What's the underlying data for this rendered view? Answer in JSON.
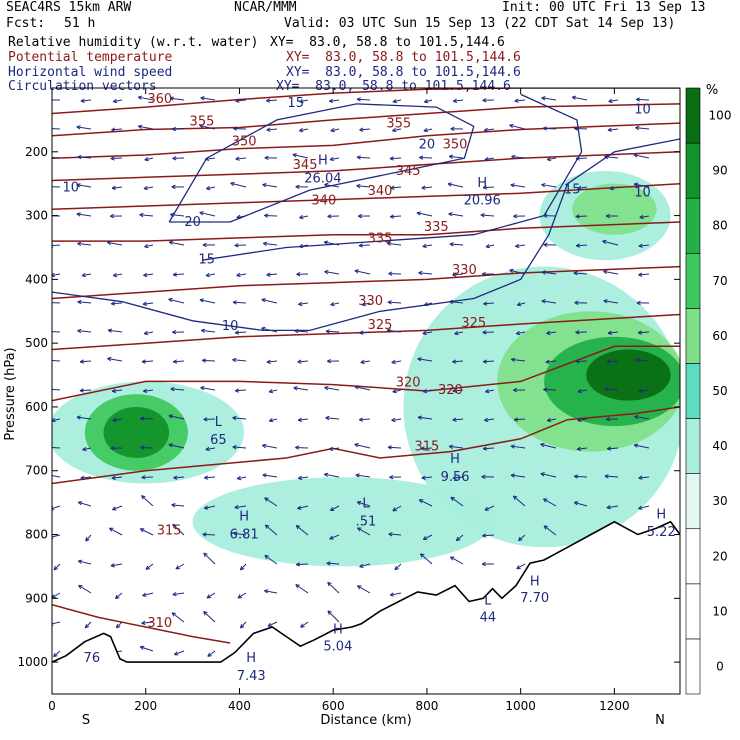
{
  "header": {
    "model": "SEAC4RS 15km ARW",
    "org": "NCAR/MMM",
    "init": "Init: 00 UTC Fri 13 Sep 13",
    "fcst_label": "Fcst:",
    "fcst_value": "51 h",
    "valid": "Valid: 03 UTC Sun 15 Sep 13 (22 CDT Sat 14 Sep 13)",
    "fields": [
      {
        "name": "Relative humidity (w.r.t. water)",
        "xy": "XY=  83.0, 58.8 to 101.5,144.6",
        "color": "#000000"
      },
      {
        "name": "Potential temperature",
        "xy": "XY=  83.0, 58.8 to 101.5,144.6",
        "color": "#8b1a1a"
      },
      {
        "name": "Horizontal wind speed",
        "xy": "XY=  83.0, 58.8 to 101.5,144.6",
        "color": "#1e2a80"
      },
      {
        "name": "Circulation vectors",
        "xy": "XY=  83.0, 58.8 to 101.5,144.6",
        "color": "#1e2a80"
      }
    ]
  },
  "colors": {
    "theta": "#8b1a1a",
    "wind": "#1e2a80",
    "terrain": "#000000",
    "rh_30": "#e0f8f0",
    "rh_40": "#a8eedc",
    "rh_50": "#5cdcc0",
    "rh_60": "#80e08a",
    "rh_70": "#40c860",
    "rh_80": "#22b048",
    "rh_90": "#12922a",
    "rh_100": "#0a6e14"
  },
  "chart_data": {
    "type": "heatmap",
    "title": "SEAC4RS 15km ARW",
    "xlabel": "Distance (km)",
    "ylabel": "Pressure (hPa)",
    "xlim": [
      0,
      1340
    ],
    "ylim": [
      1050,
      100
    ],
    "x_ticks": [
      0,
      200,
      400,
      600,
      800,
      1000,
      1200
    ],
    "y_ticks": [
      200,
      300,
      400,
      500,
      600,
      700,
      800,
      900,
      1000
    ],
    "x_endpoints": [
      "S",
      "N"
    ],
    "colorbar": {
      "unit": "%",
      "levels": [
        0,
        10,
        20,
        30,
        40,
        50,
        60,
        70,
        80,
        90,
        100
      ],
      "colors": [
        "#ffffff",
        "#ffffff",
        "#ffffff",
        "#e0f8f0",
        "#a8eedc",
        "#5cdcc0",
        "#80e08a",
        "#40c860",
        "#22b048",
        "#12922a",
        "#0a6e14"
      ]
    },
    "rh_regions": [
      {
        "level": 40,
        "cx": 200,
        "cy": 640,
        "rx": 210,
        "ry": 80
      },
      {
        "level": 70,
        "cx": 180,
        "cy": 640,
        "rx": 110,
        "ry": 60
      },
      {
        "level": 90,
        "cx": 180,
        "cy": 640,
        "rx": 70,
        "ry": 40
      },
      {
        "level": 40,
        "cx": 620,
        "cy": 780,
        "rx": 320,
        "ry": 70
      },
      {
        "level": 40,
        "cx": 1050,
        "cy": 600,
        "rx": 300,
        "ry": 220
      },
      {
        "level": 60,
        "cx": 1150,
        "cy": 560,
        "rx": 200,
        "ry": 110
      },
      {
        "level": 80,
        "cx": 1200,
        "cy": 560,
        "rx": 150,
        "ry": 70
      },
      {
        "level": 100,
        "cx": 1230,
        "cy": 550,
        "rx": 90,
        "ry": 40
      },
      {
        "level": 40,
        "cx": 1180,
        "cy": 300,
        "rx": 140,
        "ry": 70
      },
      {
        "level": 60,
        "cx": 1200,
        "cy": 290,
        "rx": 90,
        "ry": 40
      }
    ],
    "theta_contours": [
      {
        "label": "360",
        "label_x": 230,
        "points": [
          [
            0,
            140
          ],
          [
            200,
            130
          ],
          [
            400,
            118
          ],
          [
            600,
            108
          ],
          [
            800,
            102
          ],
          [
            1000,
            100
          ],
          [
            1340,
            100
          ]
        ]
      },
      {
        "label": "355",
        "label_x": 320,
        "points": [
          [
            0,
            175
          ],
          [
            200,
            165
          ],
          [
            400,
            162
          ],
          [
            600,
            150
          ],
          [
            800,
            140
          ],
          [
            1000,
            130
          ],
          [
            1340,
            125
          ]
        ]
      },
      {
        "label": "350",
        "label_x": 410,
        "points": [
          [
            0,
            210
          ],
          [
            200,
            205
          ],
          [
            400,
            195
          ],
          [
            600,
            190
          ],
          [
            800,
            175
          ],
          [
            1000,
            165
          ],
          [
            1340,
            155
          ]
        ]
      },
      {
        "label": "345",
        "label_x": 540,
        "points": [
          [
            0,
            245
          ],
          [
            200,
            240
          ],
          [
            400,
            235
          ],
          [
            600,
            230
          ],
          [
            800,
            220
          ],
          [
            1000,
            210
          ],
          [
            1340,
            200
          ]
        ]
      },
      {
        "label": "340",
        "label_x": 700,
        "points": [
          [
            0,
            290
          ],
          [
            200,
            285
          ],
          [
            400,
            280
          ],
          [
            600,
            275
          ],
          [
            800,
            270
          ],
          [
            1000,
            265
          ],
          [
            1340,
            250
          ]
        ]
      },
      {
        "label": "335",
        "label_x": 820,
        "points": [
          [
            0,
            340
          ],
          [
            200,
            340
          ],
          [
            400,
            335
          ],
          [
            600,
            330
          ],
          [
            800,
            330
          ],
          [
            1000,
            320
          ],
          [
            1340,
            310
          ]
        ]
      },
      {
        "label": "330",
        "label_x": 880,
        "points": [
          [
            0,
            430
          ],
          [
            200,
            420
          ],
          [
            400,
            410
          ],
          [
            600,
            405
          ],
          [
            800,
            400
          ],
          [
            1000,
            390
          ],
          [
            1340,
            380
          ]
        ]
      },
      {
        "label": "325",
        "label_x": 700,
        "points": [
          [
            0,
            510
          ],
          [
            200,
            500
          ],
          [
            400,
            490
          ],
          [
            600,
            485
          ],
          [
            800,
            480
          ],
          [
            1000,
            470
          ],
          [
            1340,
            455
          ]
        ]
      },
      {
        "label": "320",
        "label_x": 760,
        "points": [
          [
            0,
            590
          ],
          [
            200,
            560
          ],
          [
            400,
            560
          ],
          [
            600,
            565
          ],
          [
            800,
            575
          ],
          [
            1000,
            560
          ],
          [
            1200,
            505
          ],
          [
            1340,
            505
          ]
        ]
      },
      {
        "label": "315",
        "label_x": 800,
        "points": [
          [
            0,
            720
          ],
          [
            100,
            710
          ],
          [
            200,
            700
          ],
          [
            350,
            690
          ],
          [
            500,
            680
          ],
          [
            600,
            665
          ],
          [
            700,
            680
          ],
          [
            850,
            670
          ],
          [
            1000,
            650
          ],
          [
            1100,
            620
          ],
          [
            1250,
            610
          ],
          [
            1340,
            600
          ]
        ]
      },
      {
        "label": "310",
        "label_x": 230,
        "points": [
          [
            0,
            910
          ],
          [
            100,
            930
          ],
          [
            200,
            945
          ],
          [
            300,
            960
          ],
          [
            380,
            970
          ]
        ]
      }
    ],
    "wind_contours": [
      {
        "label": "10",
        "label_x": 380,
        "points": [
          [
            0,
            420
          ],
          [
            150,
            435
          ],
          [
            300,
            465
          ],
          [
            450,
            480
          ],
          [
            550,
            480
          ],
          [
            700,
            450
          ],
          [
            900,
            430
          ],
          [
            1000,
            400
          ],
          [
            1060,
            330
          ],
          [
            1100,
            250
          ],
          [
            1200,
            200
          ],
          [
            1340,
            180
          ]
        ]
      },
      {
        "label": "15",
        "label_x": 330,
        "points": [
          [
            320,
            370
          ],
          [
            500,
            350
          ],
          [
            700,
            340
          ],
          [
            900,
            330
          ],
          [
            1050,
            300
          ],
          [
            1130,
            200
          ],
          [
            1120,
            150
          ],
          [
            1000,
            110
          ]
        ]
      },
      {
        "label": "20",
        "label_x": 300,
        "points": [
          [
            250,
            310
          ],
          [
            380,
            310
          ],
          [
            550,
            260
          ],
          [
            750,
            230
          ],
          [
            880,
            210
          ],
          [
            900,
            160
          ],
          [
            820,
            130
          ],
          [
            650,
            125
          ],
          [
            480,
            150
          ],
          [
            330,
            210
          ],
          [
            250,
            310
          ]
        ]
      }
    ],
    "annotations": [
      {
        "text": "L",
        "x": 355,
        "y": 630,
        "color": "#1e2a80"
      },
      {
        "text": "65",
        "x": 355,
        "y": 658,
        "color": "#1e2a80"
      },
      {
        "text": "H",
        "x": 410,
        "y": 778,
        "color": "#1e2a80"
      },
      {
        "text": "6.81",
        "x": 410,
        "y": 806,
        "color": "#1e2a80"
      },
      {
        "text": "L",
        "x": 670,
        "y": 758,
        "color": "#1e2a80"
      },
      {
        "text": ".51",
        "x": 670,
        "y": 786,
        "color": "#1e2a80"
      },
      {
        "text": "H",
        "x": 860,
        "y": 688,
        "color": "#1e2a80"
      },
      {
        "text": "9.56",
        "x": 860,
        "y": 716,
        "color": "#1e2a80"
      },
      {
        "text": "H",
        "x": 578,
        "y": 220,
        "color": "#1e2a80"
      },
      {
        "text": "26.04",
        "x": 578,
        "y": 248,
        "color": "#1e2a80"
      },
      {
        "text": "H",
        "x": 918,
        "y": 255,
        "color": "#1e2a80"
      },
      {
        "text": "20.96",
        "x": 918,
        "y": 283,
        "color": "#1e2a80"
      },
      {
        "text": "H",
        "x": 1030,
        "y": 880,
        "color": "#1e2a80"
      },
      {
        "text": "7.70",
        "x": 1030,
        "y": 906,
        "color": "#1e2a80"
      },
      {
        "text": "L",
        "x": 930,
        "y": 910,
        "color": "#1e2a80"
      },
      {
        "text": "44",
        "x": 930,
        "y": 936,
        "color": "#1e2a80"
      },
      {
        "text": "H",
        "x": 610,
        "y": 955,
        "color": "#1e2a80"
      },
      {
        "text": "5.04",
        "x": 610,
        "y": 982,
        "color": "#1e2a80"
      },
      {
        "text": "H",
        "x": 425,
        "y": 1000,
        "color": "#1e2a80"
      },
      {
        "text": "7.43",
        "x": 425,
        "y": 1028,
        "color": "#1e2a80"
      },
      {
        "text": "H",
        "x": 1300,
        "y": 775,
        "color": "#1e2a80"
      },
      {
        "text": "5.22",
        "x": 1300,
        "y": 802,
        "color": "#1e2a80"
      },
      {
        "text": "10",
        "x": 40,
        "y": 262,
        "color": "#1e2a80"
      },
      {
        "text": "10",
        "x": 1260,
        "y": 140,
        "color": "#1e2a80"
      },
      {
        "text": "10",
        "x": 1260,
        "y": 270,
        "color": "#1e2a80"
      },
      {
        "text": "15",
        "x": 1110,
        "y": 265,
        "color": "#1e2a80"
      },
      {
        "text": "15",
        "x": 520,
        "y": 130,
        "color": "#1e2a80"
      },
      {
        "text": "20",
        "x": 800,
        "y": 195,
        "color": "#1e2a80"
      },
      {
        "text": "315",
        "x": 250,
        "y": 800,
        "color": "#8b1a1a"
      },
      {
        "text": "320",
        "x": 850,
        "y": 580,
        "color": "#8b1a1a"
      },
      {
        "text": "325",
        "x": 900,
        "y": 475,
        "color": "#8b1a1a"
      },
      {
        "text": "330",
        "x": 680,
        "y": 440,
        "color": "#8b1a1a"
      },
      {
        "text": "335",
        "x": 700,
        "y": 342,
        "color": "#8b1a1a"
      },
      {
        "text": "340",
        "x": 580,
        "y": 283,
        "color": "#8b1a1a"
      },
      {
        "text": "345",
        "x": 760,
        "y": 236,
        "color": "#8b1a1a"
      },
      {
        "text": "350",
        "x": 860,
        "y": 195,
        "color": "#8b1a1a"
      },
      {
        "text": "355",
        "x": 740,
        "y": 162,
        "color": "#8b1a1a"
      },
      {
        "text": "76",
        "x": 85,
        "y": 1000,
        "color": "#1e2a80"
      }
    ],
    "terrain": [
      [
        0,
        1000
      ],
      [
        30,
        990
      ],
      [
        70,
        968
      ],
      [
        110,
        955
      ],
      [
        125,
        960
      ],
      [
        145,
        995
      ],
      [
        160,
        1000
      ],
      [
        200,
        1000
      ],
      [
        260,
        1000
      ],
      [
        300,
        1000
      ],
      [
        360,
        1000
      ],
      [
        390,
        985
      ],
      [
        430,
        955
      ],
      [
        470,
        945
      ],
      [
        500,
        960
      ],
      [
        530,
        975
      ],
      [
        560,
        965
      ],
      [
        600,
        950
      ],
      [
        640,
        945
      ],
      [
        660,
        940
      ],
      [
        700,
        920
      ],
      [
        740,
        905
      ],
      [
        780,
        890
      ],
      [
        820,
        895
      ],
      [
        860,
        880
      ],
      [
        890,
        905
      ],
      [
        920,
        900
      ],
      [
        940,
        885
      ],
      [
        960,
        900
      ],
      [
        990,
        880
      ],
      [
        1020,
        845
      ],
      [
        1050,
        840
      ],
      [
        1100,
        820
      ],
      [
        1150,
        800
      ],
      [
        1200,
        780
      ],
      [
        1250,
        800
      ],
      [
        1290,
        790
      ],
      [
        1320,
        780
      ],
      [
        1340,
        800
      ]
    ],
    "grid": false,
    "legend": "right"
  }
}
